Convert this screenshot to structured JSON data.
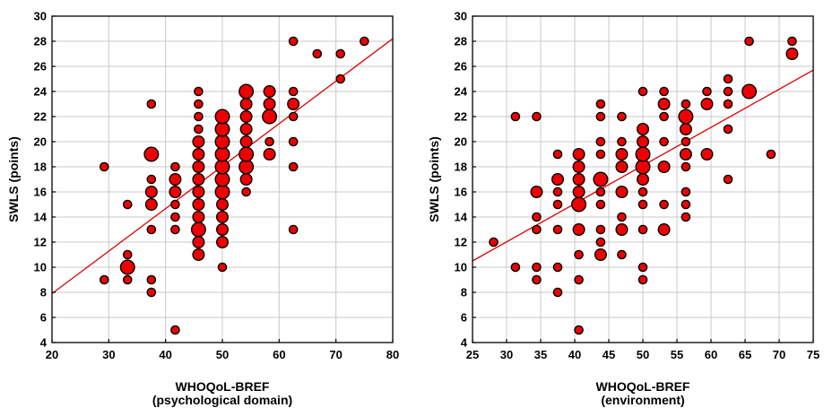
{
  "chart_data": [
    {
      "type": "scatter",
      "xlabel": "WHOQoL-BREF",
      "xlabel2": "(psychological domain)",
      "ylabel": "SWLS (points)",
      "xlim": [
        20,
        80
      ],
      "ylim": [
        4,
        30
      ],
      "xticks": [
        20,
        30,
        40,
        50,
        60,
        70,
        80
      ],
      "yticks": [
        4,
        6,
        8,
        10,
        12,
        14,
        16,
        18,
        20,
        22,
        24,
        26,
        28,
        30
      ],
      "grid": true,
      "fit_line": {
        "x": [
          20,
          80
        ],
        "y": [
          7.9,
          28.2
        ],
        "color": "#e00000"
      },
      "point_color": "#ee0000",
      "points": [
        {
          "x": 29.2,
          "y": 9,
          "size": 1
        },
        {
          "x": 29.2,
          "y": 18,
          "size": 1
        },
        {
          "x": 33.3,
          "y": 10,
          "size": 3
        },
        {
          "x": 33.3,
          "y": 9,
          "size": 1
        },
        {
          "x": 33.3,
          "y": 11,
          "size": 1
        },
        {
          "x": 33.3,
          "y": 15,
          "size": 1
        },
        {
          "x": 37.5,
          "y": 8,
          "size": 1
        },
        {
          "x": 37.5,
          "y": 9,
          "size": 1
        },
        {
          "x": 37.5,
          "y": 13,
          "size": 1
        },
        {
          "x": 37.5,
          "y": 15,
          "size": 2
        },
        {
          "x": 37.5,
          "y": 16,
          "size": 2
        },
        {
          "x": 37.5,
          "y": 17,
          "size": 1
        },
        {
          "x": 37.5,
          "y": 19,
          "size": 3
        },
        {
          "x": 37.5,
          "y": 23,
          "size": 1
        },
        {
          "x": 41.7,
          "y": 5,
          "size": 1
        },
        {
          "x": 41.7,
          "y": 13,
          "size": 1
        },
        {
          "x": 41.7,
          "y": 14,
          "size": 1
        },
        {
          "x": 41.7,
          "y": 15,
          "size": 1
        },
        {
          "x": 41.7,
          "y": 16,
          "size": 2
        },
        {
          "x": 41.7,
          "y": 17,
          "size": 2
        },
        {
          "x": 41.7,
          "y": 18,
          "size": 1
        },
        {
          "x": 45.8,
          "y": 11,
          "size": 2
        },
        {
          "x": 45.8,
          "y": 12,
          "size": 2
        },
        {
          "x": 45.8,
          "y": 13,
          "size": 3
        },
        {
          "x": 45.8,
          "y": 14,
          "size": 2
        },
        {
          "x": 45.8,
          "y": 15,
          "size": 2
        },
        {
          "x": 45.8,
          "y": 16,
          "size": 2
        },
        {
          "x": 45.8,
          "y": 17,
          "size": 2
        },
        {
          "x": 45.8,
          "y": 18,
          "size": 2
        },
        {
          "x": 45.8,
          "y": 19,
          "size": 2
        },
        {
          "x": 45.8,
          "y": 20,
          "size": 2
        },
        {
          "x": 45.8,
          "y": 21,
          "size": 1
        },
        {
          "x": 45.8,
          "y": 22,
          "size": 1
        },
        {
          "x": 45.8,
          "y": 23,
          "size": 1
        },
        {
          "x": 45.8,
          "y": 24,
          "size": 1
        },
        {
          "x": 50,
          "y": 10,
          "size": 1
        },
        {
          "x": 50,
          "y": 12,
          "size": 2
        },
        {
          "x": 50,
          "y": 13,
          "size": 2
        },
        {
          "x": 50,
          "y": 14,
          "size": 2
        },
        {
          "x": 50,
          "y": 15,
          "size": 2
        },
        {
          "x": 50,
          "y": 16,
          "size": 3
        },
        {
          "x": 50,
          "y": 17,
          "size": 3
        },
        {
          "x": 50,
          "y": 18,
          "size": 3
        },
        {
          "x": 50,
          "y": 19,
          "size": 3
        },
        {
          "x": 50,
          "y": 20,
          "size": 3
        },
        {
          "x": 50,
          "y": 21,
          "size": 3
        },
        {
          "x": 50,
          "y": 22,
          "size": 3
        },
        {
          "x": 54.2,
          "y": 16,
          "size": 1
        },
        {
          "x": 54.2,
          "y": 17,
          "size": 2
        },
        {
          "x": 54.2,
          "y": 18,
          "size": 3
        },
        {
          "x": 54.2,
          "y": 19,
          "size": 3
        },
        {
          "x": 54.2,
          "y": 20,
          "size": 2
        },
        {
          "x": 54.2,
          "y": 21,
          "size": 2
        },
        {
          "x": 54.2,
          "y": 22,
          "size": 2
        },
        {
          "x": 54.2,
          "y": 23,
          "size": 2
        },
        {
          "x": 54.2,
          "y": 24,
          "size": 3
        },
        {
          "x": 58.3,
          "y": 19,
          "size": 2
        },
        {
          "x": 58.3,
          "y": 20,
          "size": 1
        },
        {
          "x": 58.3,
          "y": 22,
          "size": 3
        },
        {
          "x": 58.3,
          "y": 23,
          "size": 2
        },
        {
          "x": 58.3,
          "y": 24,
          "size": 2
        },
        {
          "x": 62.5,
          "y": 13,
          "size": 1
        },
        {
          "x": 62.5,
          "y": 18,
          "size": 1
        },
        {
          "x": 62.5,
          "y": 20,
          "size": 1
        },
        {
          "x": 62.5,
          "y": 22,
          "size": 1
        },
        {
          "x": 62.5,
          "y": 23,
          "size": 2
        },
        {
          "x": 62.5,
          "y": 24,
          "size": 1
        },
        {
          "x": 62.5,
          "y": 28,
          "size": 1
        },
        {
          "x": 66.7,
          "y": 27,
          "size": 1
        },
        {
          "x": 70.8,
          "y": 25,
          "size": 1
        },
        {
          "x": 70.8,
          "y": 27,
          "size": 1
        },
        {
          "x": 75,
          "y": 28,
          "size": 1
        }
      ]
    },
    {
      "type": "scatter",
      "xlabel": "WHOQoL-BREF",
      "xlabel2": "(environment)",
      "ylabel": "SWLS (points)",
      "xlim": [
        25,
        75
      ],
      "ylim": [
        4,
        30
      ],
      "xticks": [
        25,
        30,
        35,
        40,
        45,
        50,
        55,
        60,
        65,
        70,
        75
      ],
      "yticks": [
        4,
        6,
        8,
        10,
        12,
        14,
        16,
        18,
        20,
        22,
        24,
        26,
        28,
        30
      ],
      "grid": true,
      "fit_line": {
        "x": [
          25,
          75
        ],
        "y": [
          10.5,
          25.7
        ],
        "color": "#e00000"
      },
      "point_color": "#ee0000",
      "points": [
        {
          "x": 28.1,
          "y": 12,
          "size": 1
        },
        {
          "x": 31.3,
          "y": 10,
          "size": 1
        },
        {
          "x": 31.3,
          "y": 22,
          "size": 1
        },
        {
          "x": 34.4,
          "y": 9,
          "size": 1
        },
        {
          "x": 34.4,
          "y": 10,
          "size": 1
        },
        {
          "x": 34.4,
          "y": 13,
          "size": 1
        },
        {
          "x": 34.4,
          "y": 14,
          "size": 1
        },
        {
          "x": 34.4,
          "y": 16,
          "size": 2
        },
        {
          "x": 34.4,
          "y": 22,
          "size": 1
        },
        {
          "x": 37.5,
          "y": 8,
          "size": 1
        },
        {
          "x": 37.5,
          "y": 10,
          "size": 1
        },
        {
          "x": 37.5,
          "y": 13,
          "size": 1
        },
        {
          "x": 37.5,
          "y": 15,
          "size": 1
        },
        {
          "x": 37.5,
          "y": 16,
          "size": 1
        },
        {
          "x": 37.5,
          "y": 17,
          "size": 2
        },
        {
          "x": 37.5,
          "y": 19,
          "size": 1
        },
        {
          "x": 40.6,
          "y": 5,
          "size": 1
        },
        {
          "x": 40.6,
          "y": 9,
          "size": 1
        },
        {
          "x": 40.6,
          "y": 11,
          "size": 1
        },
        {
          "x": 40.6,
          "y": 13,
          "size": 2
        },
        {
          "x": 40.6,
          "y": 15,
          "size": 3
        },
        {
          "x": 40.6,
          "y": 16,
          "size": 2
        },
        {
          "x": 40.6,
          "y": 17,
          "size": 2
        },
        {
          "x": 40.6,
          "y": 18,
          "size": 2
        },
        {
          "x": 40.6,
          "y": 19,
          "size": 2
        },
        {
          "x": 43.8,
          "y": 11,
          "size": 2
        },
        {
          "x": 43.8,
          "y": 12,
          "size": 1
        },
        {
          "x": 43.8,
          "y": 13,
          "size": 1
        },
        {
          "x": 43.8,
          "y": 15,
          "size": 1
        },
        {
          "x": 43.8,
          "y": 16,
          "size": 1
        },
        {
          "x": 43.8,
          "y": 17,
          "size": 3
        },
        {
          "x": 43.8,
          "y": 19,
          "size": 1
        },
        {
          "x": 43.8,
          "y": 20,
          "size": 1
        },
        {
          "x": 43.8,
          "y": 22,
          "size": 1
        },
        {
          "x": 43.8,
          "y": 23,
          "size": 1
        },
        {
          "x": 46.9,
          "y": 11,
          "size": 1
        },
        {
          "x": 46.9,
          "y": 13,
          "size": 2
        },
        {
          "x": 46.9,
          "y": 14,
          "size": 1
        },
        {
          "x": 46.9,
          "y": 16,
          "size": 2
        },
        {
          "x": 46.9,
          "y": 18,
          "size": 2
        },
        {
          "x": 46.9,
          "y": 19,
          "size": 2
        },
        {
          "x": 46.9,
          "y": 20,
          "size": 1
        },
        {
          "x": 46.9,
          "y": 22,
          "size": 1
        },
        {
          "x": 50,
          "y": 9,
          "size": 1
        },
        {
          "x": 50,
          "y": 10,
          "size": 1
        },
        {
          "x": 50,
          "y": 13,
          "size": 1
        },
        {
          "x": 50,
          "y": 15,
          "size": 1
        },
        {
          "x": 50,
          "y": 16,
          "size": 1
        },
        {
          "x": 50,
          "y": 17,
          "size": 2
        },
        {
          "x": 50,
          "y": 18,
          "size": 3
        },
        {
          "x": 50,
          "y": 19,
          "size": 3
        },
        {
          "x": 50,
          "y": 20,
          "size": 2
        },
        {
          "x": 50,
          "y": 21,
          "size": 2
        },
        {
          "x": 50,
          "y": 24,
          "size": 1
        },
        {
          "x": 53.1,
          "y": 13,
          "size": 2
        },
        {
          "x": 53.1,
          "y": 15,
          "size": 1
        },
        {
          "x": 53.1,
          "y": 18,
          "size": 2
        },
        {
          "x": 53.1,
          "y": 20,
          "size": 1
        },
        {
          "x": 53.1,
          "y": 22,
          "size": 1
        },
        {
          "x": 53.1,
          "y": 23,
          "size": 2
        },
        {
          "x": 53.1,
          "y": 24,
          "size": 1
        },
        {
          "x": 56.3,
          "y": 14,
          "size": 1
        },
        {
          "x": 56.3,
          "y": 15,
          "size": 1
        },
        {
          "x": 56.3,
          "y": 16,
          "size": 1
        },
        {
          "x": 56.3,
          "y": 18,
          "size": 1
        },
        {
          "x": 56.3,
          "y": 19,
          "size": 2
        },
        {
          "x": 56.3,
          "y": 20,
          "size": 1
        },
        {
          "x": 56.3,
          "y": 21,
          "size": 2
        },
        {
          "x": 56.3,
          "y": 22,
          "size": 3
        },
        {
          "x": 56.3,
          "y": 23,
          "size": 1
        },
        {
          "x": 59.4,
          "y": 19,
          "size": 2
        },
        {
          "x": 59.4,
          "y": 23,
          "size": 2
        },
        {
          "x": 59.4,
          "y": 24,
          "size": 1
        },
        {
          "x": 62.5,
          "y": 17,
          "size": 1
        },
        {
          "x": 62.5,
          "y": 21,
          "size": 1
        },
        {
          "x": 62.5,
          "y": 23,
          "size": 1
        },
        {
          "x": 62.5,
          "y": 24,
          "size": 1
        },
        {
          "x": 62.5,
          "y": 25,
          "size": 1
        },
        {
          "x": 65.6,
          "y": 24,
          "size": 3
        },
        {
          "x": 65.6,
          "y": 28,
          "size": 1
        },
        {
          "x": 68.8,
          "y": 19,
          "size": 1
        },
        {
          "x": 71.9,
          "y": 27,
          "size": 2
        },
        {
          "x": 71.9,
          "y": 28,
          "size": 1
        }
      ]
    }
  ]
}
